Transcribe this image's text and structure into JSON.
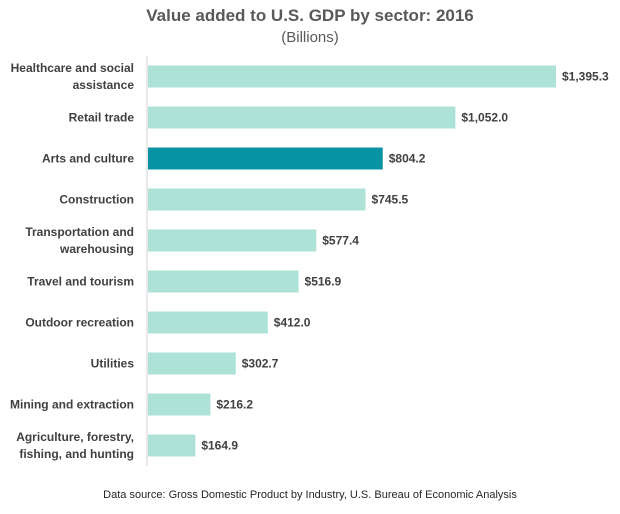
{
  "chart_data": {
    "type": "bar",
    "orientation": "horizontal",
    "title": "Value added to U.S. GDP by sector: 2016",
    "subtitle": "(Billions)",
    "categories": [
      [
        "Healthcare and social",
        "assistance"
      ],
      [
        "Retail trade"
      ],
      [
        "Arts and culture"
      ],
      [
        "Construction"
      ],
      [
        "Transportation and",
        "warehousing"
      ],
      [
        "Travel and tourism"
      ],
      [
        "Outdoor recreation"
      ],
      [
        "Utilities"
      ],
      [
        "Mining and extraction"
      ],
      [
        "Agriculture, forestry,",
        "fishing, and hunting"
      ]
    ],
    "values": [
      1395.3,
      1052.0,
      804.2,
      745.5,
      577.4,
      516.9,
      412.0,
      302.7,
      216.2,
      164.9
    ],
    "value_labels": [
      "$1,395.3",
      "$1,052.0",
      "$804.2",
      "$745.5",
      "$577.4",
      "$516.9",
      "$412.0",
      "$302.7",
      "$216.2",
      "$164.9"
    ],
    "highlight_index": 2,
    "xlim": [
      0,
      1395.3
    ],
    "grid": false,
    "legend": "none",
    "colors": {
      "bar": "#ade2d7",
      "highlight": "#0793a3",
      "axis": "#d0d0d0"
    },
    "source": "Data source: Gross Domestic Product by Industry, U.S. Bureau of Economic Analysis"
  }
}
